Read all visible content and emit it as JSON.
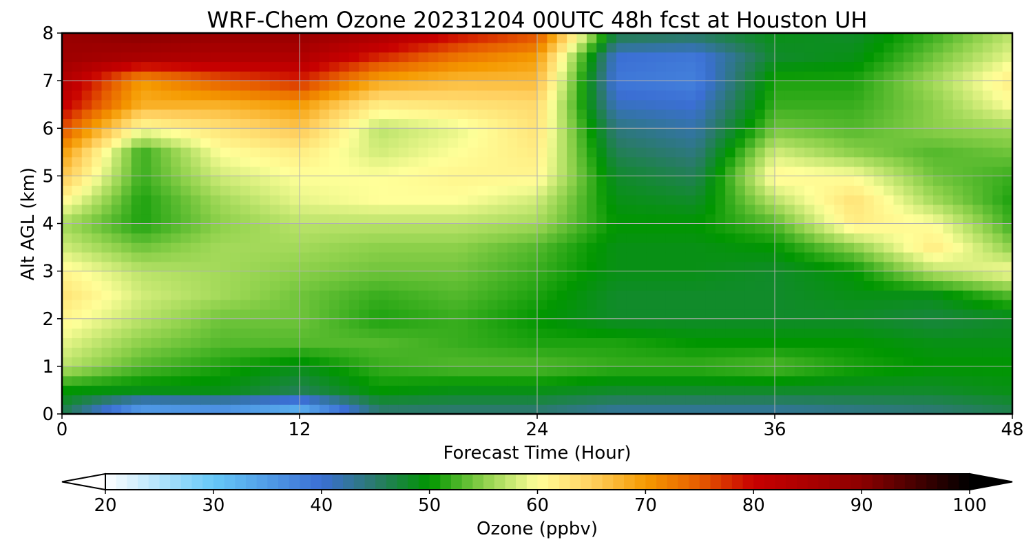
{
  "chart_data": {
    "type": "heatmap",
    "title": "WRF-Chem Ozone  20231204 00UTC 48h fcst at Houston UH",
    "xlabel": "Forecast Time (Hour)",
    "ylabel": "Alt AGL (km)",
    "xlim": [
      0,
      48
    ],
    "ylim": [
      0,
      8
    ],
    "x_ticks": [
      0,
      12,
      24,
      36,
      48
    ],
    "y_ticks": [
      0,
      1,
      2,
      3,
      4,
      5,
      6,
      7,
      8
    ],
    "grid": true,
    "x": [
      0,
      4,
      8,
      12,
      16,
      20,
      24,
      28,
      32,
      36,
      40,
      44,
      48
    ],
    "y": [
      0,
      0.5,
      1,
      1.5,
      2,
      2.5,
      3,
      3.5,
      4,
      4.5,
      5,
      5.5,
      6,
      6.5,
      7,
      7.5,
      8
    ],
    "z": [
      [
        46,
        32,
        33,
        30,
        44,
        44,
        44,
        42,
        42,
        42,
        43,
        44,
        46
      ],
      [
        50,
        49,
        49,
        46,
        50,
        49,
        49,
        48,
        48,
        48,
        48,
        48,
        49
      ],
      [
        57,
        53,
        51,
        49,
        52,
        53,
        53,
        52,
        52,
        53,
        51,
        50,
        50
      ],
      [
        59,
        55,
        53,
        53,
        53,
        52,
        51,
        51,
        50,
        50,
        50,
        49,
        49
      ],
      [
        61,
        57,
        54,
        54,
        51,
        52,
        50,
        48,
        48,
        48,
        48,
        47,
        48
      ],
      [
        63,
        58,
        56,
        54,
        52,
        53,
        51,
        48,
        48,
        48,
        49,
        49,
        53
      ],
      [
        61,
        57,
        56,
        55,
        54,
        54,
        52,
        49,
        49,
        48,
        50,
        57,
        60
      ],
      [
        58,
        54,
        56,
        56,
        55,
        55,
        53,
        49,
        49,
        50,
        55,
        62,
        55
      ],
      [
        56,
        51,
        55,
        57,
        57,
        57,
        56,
        50,
        50,
        53,
        62,
        60,
        52
      ],
      [
        61,
        51,
        56,
        59,
        60,
        60,
        58,
        49,
        48,
        57,
        63,
        56,
        51
      ],
      [
        66,
        52,
        58,
        60,
        60,
        61,
        61,
        48,
        46,
        61,
        60,
        54,
        52
      ],
      [
        70,
        52,
        60,
        62,
        58,
        60,
        62,
        46,
        44,
        58,
        55,
        53,
        54
      ],
      [
        76,
        60,
        63,
        66,
        57,
        59,
        63,
        44,
        42,
        54,
        53,
        55,
        56
      ],
      [
        81,
        68,
        68,
        70,
        62,
        63,
        64,
        41,
        40,
        52,
        52,
        55,
        60
      ],
      [
        84,
        70,
        75,
        78,
        69,
        67,
        67,
        39,
        38,
        51,
        51,
        56,
        62
      ],
      [
        87,
        85,
        84,
        84,
        78,
        73,
        70,
        40,
        39,
        48,
        49,
        54,
        59
      ],
      [
        88,
        90,
        88,
        88,
        85,
        80,
        76,
        47,
        46,
        49,
        48,
        52,
        57
      ]
    ],
    "colorbar": {
      "label": "Ozone  (ppbv)",
      "min": 20,
      "max": 100,
      "ticks": [
        20,
        30,
        40,
        50,
        60,
        70,
        80,
        90,
        100
      ],
      "extend": "both",
      "stops": [
        {
          "v": 20,
          "c": "#ffffff"
        },
        {
          "v": 30,
          "c": "#66c8f8"
        },
        {
          "v": 40,
          "c": "#3b6fd4"
        },
        {
          "v": 45,
          "c": "#2a7a6a"
        },
        {
          "v": 50,
          "c": "#009600"
        },
        {
          "v": 55,
          "c": "#8cd04a"
        },
        {
          "v": 60,
          "c": "#ffff99"
        },
        {
          "v": 65,
          "c": "#ffd060"
        },
        {
          "v": 70,
          "c": "#f59a00"
        },
        {
          "v": 75,
          "c": "#e65c00"
        },
        {
          "v": 80,
          "c": "#c80000"
        },
        {
          "v": 90,
          "c": "#8c0000"
        },
        {
          "v": 100,
          "c": "#000000"
        }
      ]
    }
  }
}
